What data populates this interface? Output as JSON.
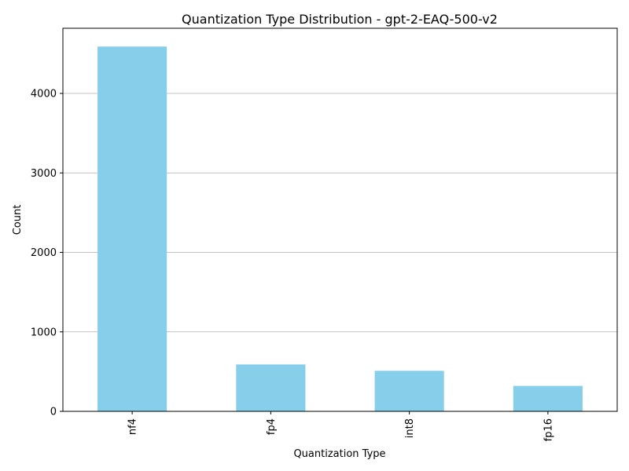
{
  "chart_data": {
    "type": "bar",
    "title": "Quantization Type Distribution - gpt-2-EAQ-500-v2",
    "xlabel": "Quantization Type",
    "ylabel": "Count",
    "categories": [
      "nf4",
      "fp4",
      "int8",
      "fp16"
    ],
    "values": [
      4590,
      590,
      510,
      320
    ],
    "ylim": [
      0,
      4820
    ],
    "yticks": [
      0,
      1000,
      2000,
      3000,
      4000
    ],
    "ytick_labels": [
      "0",
      "1000",
      "2000",
      "3000",
      "4000"
    ],
    "grid": "y-axis only",
    "legend": "none",
    "bar_color": "#87CEEB",
    "x_tick_rotation": "vertical"
  }
}
